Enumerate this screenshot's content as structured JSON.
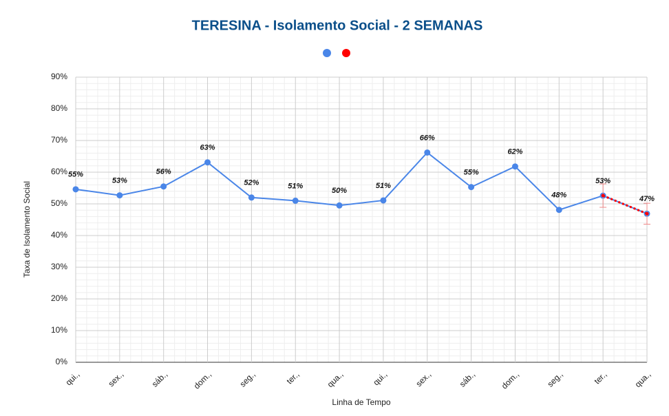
{
  "chart_data": {
    "type": "line",
    "title": "TERESINA - Isolamento Social - 2 SEMANAS",
    "y_label": "Taxa de Isolamento Social",
    "x_label": "Linha de Tempo",
    "categories": [
      "qui.,",
      "sex.,",
      "sáb.,",
      "dom.,",
      "seg.,",
      "ter.,",
      "qua.,",
      "qui.,",
      "sex.,",
      "sáb.,",
      "dom.,",
      "seg.,",
      "ter.,",
      "qua.,"
    ],
    "series": [
      {
        "color": "#4a86e8",
        "values": [
          54.6,
          52.7,
          55.5,
          63.1,
          52.0,
          51.0,
          49.5,
          51.1,
          66.2,
          55.3,
          61.8,
          48.1,
          52.6,
          46.9
        ],
        "value_labels": [
          "55%",
          "53%",
          "56%",
          "63%",
          "52%",
          "51%",
          "50%",
          "51%",
          "66%",
          "55%",
          "62%",
          "48%",
          "53%",
          "47%"
        ]
      },
      {
        "color": "#ff0000",
        "values": [
          null,
          null,
          null,
          null,
          null,
          null,
          null,
          null,
          null,
          null,
          null,
          null,
          52.6,
          46.9
        ],
        "errors": [
          null,
          null,
          null,
          null,
          null,
          null,
          null,
          null,
          null,
          null,
          null,
          null,
          3.7,
          3.3
        ]
      }
    ],
    "ylim": [
      0,
      90
    ],
    "yticks": [
      {
        "value": 0,
        "label": "0%"
      },
      {
        "value": 10,
        "label": "10%"
      },
      {
        "value": 20,
        "label": "20%"
      },
      {
        "value": 30,
        "label": "30%"
      },
      {
        "value": 40,
        "label": "40%"
      },
      {
        "value": 50,
        "label": "50%"
      },
      {
        "value": 60,
        "label": "60%"
      },
      {
        "value": 70,
        "label": "70%"
      },
      {
        "value": 80,
        "label": "80%"
      },
      {
        "value": 90,
        "label": "90%"
      }
    ],
    "grid": true
  }
}
